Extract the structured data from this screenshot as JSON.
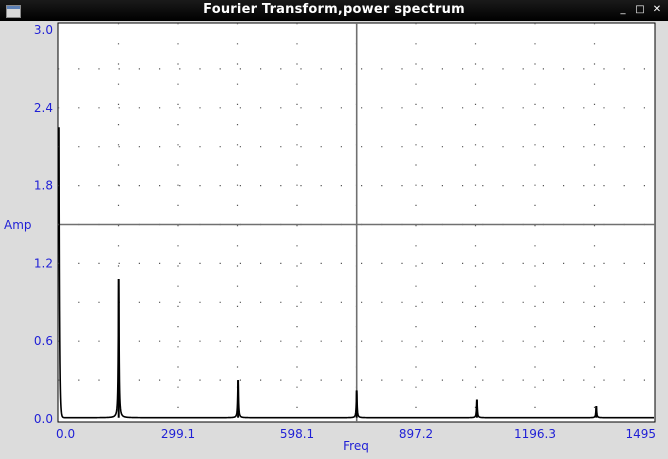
{
  "window": {
    "title": "Fourier Transform,power spectrum",
    "controls": {
      "minimize": "_",
      "maximize": "□",
      "close": "✕"
    },
    "app_icon": "window-icon"
  },
  "chart_data": {
    "type": "line",
    "xlabel": "Freq",
    "ylabel": "Amp",
    "xlim": [
      0,
      1495
    ],
    "ylim": [
      0,
      3.0
    ],
    "x_ticks": [
      "0.0",
      "299.1",
      "598.1",
      "897.2",
      "1196.3",
      "1495"
    ],
    "y_ticks": [
      "0.0",
      "0.6",
      "1.2",
      "1.8",
      "2.4",
      "3.0"
    ],
    "grid": "dotted",
    "crosshair": {
      "x": 748,
      "y": 1.5
    },
    "series": [
      {
        "color": "#000000",
        "start": {
          "x": 0,
          "y": 2.25
        },
        "baseline": 0.01,
        "peaks": [
          {
            "x": 150,
            "y": 1.08
          },
          {
            "x": 450,
            "y": 0.3
          },
          {
            "x": 748,
            "y": 0.22
          },
          {
            "x": 1050,
            "y": 0.15
          },
          {
            "x": 1350,
            "y": 0.1
          }
        ]
      }
    ]
  }
}
